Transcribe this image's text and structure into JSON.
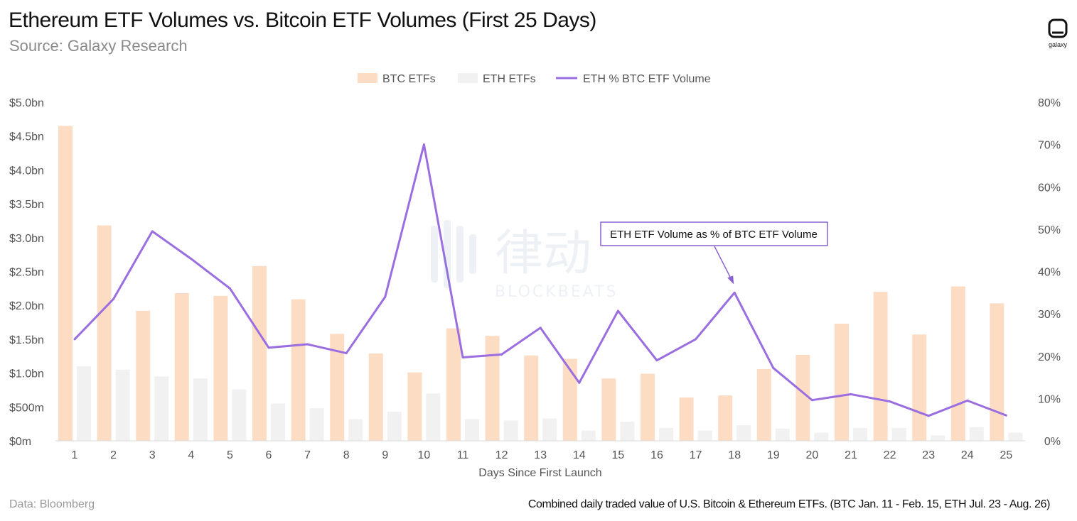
{
  "header": {
    "title": "Ethereum ETF Volumes vs. Bitcoin ETF Volumes (First 25 Days)",
    "subtitle": "Source: Galaxy Research",
    "logo_word": "galaxy"
  },
  "footer": {
    "left": "Data: Bloomberg",
    "right": "Combined daily traded value of U.S. Bitcoin & Ethereum ETFs. (BTC Jan. 11 - Feb. 15, ETH Jul. 23 - Aug. 26)"
  },
  "watermark": {
    "text_cn": "律动",
    "text_en": "BLOCKBEATS"
  },
  "colors": {
    "btc": "#fddcc4",
    "eth": "#f1f1f1",
    "line": "#9a6ee0",
    "annotation_border": "#8a62d0"
  },
  "chart_data": {
    "type": "bar",
    "categories": [
      "1",
      "2",
      "3",
      "4",
      "5",
      "6",
      "7",
      "8",
      "9",
      "10",
      "11",
      "12",
      "13",
      "14",
      "15",
      "16",
      "17",
      "18",
      "19",
      "20",
      "21",
      "22",
      "23",
      "24",
      "25"
    ],
    "series": [
      {
        "name": "BTC ETFs",
        "type": "bar",
        "axis": "left",
        "color": "#fddcc4",
        "values": [
          4.65,
          3.18,
          1.92,
          2.18,
          2.14,
          2.58,
          2.09,
          1.58,
          1.29,
          1.01,
          1.66,
          1.55,
          1.26,
          1.21,
          0.92,
          0.99,
          0.64,
          0.67,
          1.06,
          1.27,
          1.73,
          2.2,
          1.57,
          2.28,
          2.03
        ]
      },
      {
        "name": "ETH ETFs",
        "type": "bar",
        "axis": "left",
        "color": "#f1f1f1",
        "values": [
          1.1,
          1.05,
          0.95,
          0.92,
          0.76,
          0.55,
          0.48,
          0.32,
          0.43,
          0.7,
          0.32,
          0.3,
          0.33,
          0.15,
          0.28,
          0.19,
          0.15,
          0.23,
          0.18,
          0.12,
          0.19,
          0.19,
          0.08,
          0.2,
          0.12
        ]
      },
      {
        "name": "ETH % BTC ETF Volume",
        "type": "line",
        "axis": "right",
        "color": "#9a6ee0",
        "values": [
          0.24,
          0.335,
          0.495,
          0.43,
          0.36,
          0.22,
          0.228,
          0.207,
          0.34,
          0.7,
          0.197,
          0.204,
          0.267,
          0.137,
          0.307,
          0.19,
          0.24,
          0.35,
          0.172,
          0.096,
          0.11,
          0.093,
          0.059,
          0.095,
          0.06
        ]
      }
    ],
    "xlabel": "Days Since First Launch",
    "yticks_left": [
      "$0m",
      "$500m",
      "$1.0bn",
      "$1.5bn",
      "$2.0bn",
      "$2.5bn",
      "$3.0bn",
      "$3.5bn",
      "$4.0bn",
      "$4.5bn",
      "$5.0bn"
    ],
    "yticks_right": [
      "0%",
      "10%",
      "20%",
      "30%",
      "40%",
      "50%",
      "60%",
      "70%",
      "80%"
    ],
    "ylim_left": [
      0,
      5
    ],
    "ylim_right": [
      0,
      0.8
    ],
    "legend_position": "top-center",
    "grid": false,
    "annotation": {
      "text": "ETH ETF Volume as % of BTC ETF Volume",
      "target_day": "18"
    }
  }
}
